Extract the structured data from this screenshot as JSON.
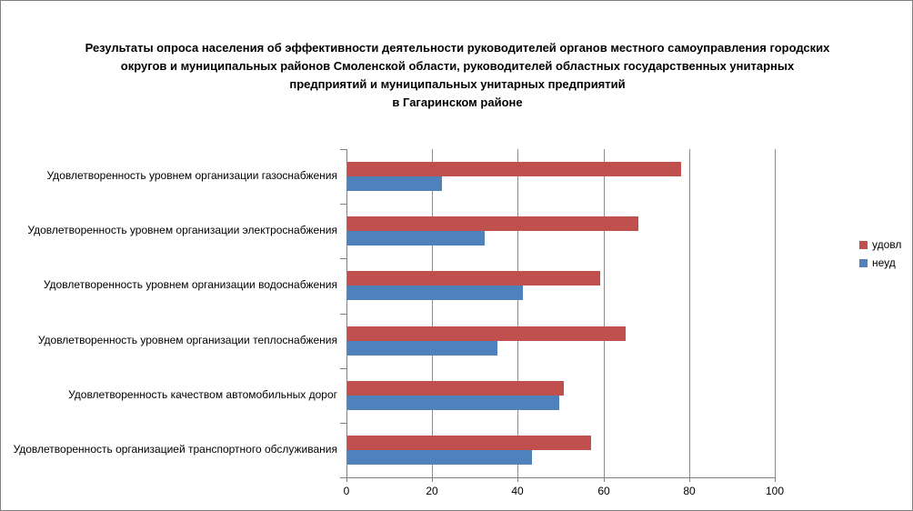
{
  "chart_data": {
    "type": "bar",
    "orientation": "horizontal",
    "title": "Результаты опроса населения об эффективности деятельности руководителей органов местного самоуправления городских округов и муниципальных районов Смоленской области, руководителей областных государственных унитарных предприятий и муниципальных унитарных предприятий в Гагаринском районе",
    "title_lines": [
      "Результаты опроса населения об эффективности деятельности руководителей органов местного самоуправления городских",
      "округов и муниципальных районов Смоленской области, руководителей областных государственных унитарных",
      "предприятий и муниципальных унитарных предприятий",
      "в Гагаринском районе"
    ],
    "categories": [
      "Удовлетворенность уровнем организации газоснабжения",
      "Удовлетворенность уровнем организации электроснабжения",
      "Удовлетворенность уровнем организации водоснабжения",
      "Удовлетворенность уровнем организации теплоснабжения",
      "Удовлетворенность качеством автомобильных дорог",
      "Удовлетворенность организацией транспортного обслуживания"
    ],
    "series": [
      {
        "name": "удовл",
        "color": "#C0504D",
        "values": [
          78,
          68,
          59,
          65,
          50.5,
          57
        ]
      },
      {
        "name": "неуд",
        "color": "#4F81BD",
        "values": [
          22,
          32,
          41,
          35,
          49.5,
          43
        ]
      }
    ],
    "xlabel": "",
    "ylabel": "",
    "xlim": [
      0,
      100
    ],
    "x_ticks": [
      0,
      20,
      40,
      60,
      80,
      100
    ],
    "grid": true,
    "legend_position": "right",
    "colors": {
      "series_udovl": "#C0504D",
      "series_neud": "#4F81BD",
      "axis": "#808080",
      "gridline": "#8c8c8c",
      "frame_border": "#808080",
      "background": "#ffffff",
      "text": "#000000"
    }
  }
}
